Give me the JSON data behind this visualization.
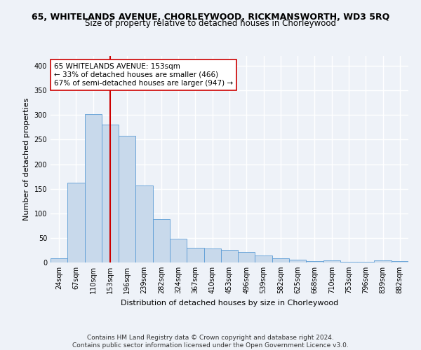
{
  "title1": "65, WHITELANDS AVENUE, CHORLEYWOOD, RICKMANSWORTH, WD3 5RQ",
  "title2": "Size of property relative to detached houses in Chorleywood",
  "xlabel": "Distribution of detached houses by size in Chorleywood",
  "ylabel": "Number of detached properties",
  "categories": [
    "24sqm",
    "67sqm",
    "110sqm",
    "153sqm",
    "196sqm",
    "239sqm",
    "282sqm",
    "324sqm",
    "367sqm",
    "410sqm",
    "453sqm",
    "496sqm",
    "539sqm",
    "582sqm",
    "625sqm",
    "668sqm",
    "710sqm",
    "753sqm",
    "796sqm",
    "839sqm",
    "882sqm"
  ],
  "values": [
    8,
    163,
    302,
    281,
    258,
    157,
    88,
    48,
    30,
    29,
    25,
    22,
    14,
    8,
    6,
    3,
    4,
    2,
    1,
    4,
    3
  ],
  "bar_color": "#c8d9eb",
  "bar_edge_color": "#5b9bd5",
  "vline_x": 3,
  "vline_color": "#cc0000",
  "annotation_text": "65 WHITELANDS AVENUE: 153sqm\n← 33% of detached houses are smaller (466)\n67% of semi-detached houses are larger (947) →",
  "annotation_box_color": "white",
  "annotation_box_edge_color": "#cc0000",
  "ylim": [
    0,
    420
  ],
  "yticks": [
    0,
    50,
    100,
    150,
    200,
    250,
    300,
    350,
    400
  ],
  "footer_text": "Contains HM Land Registry data © Crown copyright and database right 2024.\nContains public sector information licensed under the Open Government Licence v3.0.",
  "background_color": "#eef2f8",
  "grid_color": "white",
  "title1_fontsize": 9,
  "title2_fontsize": 8.5,
  "xlabel_fontsize": 8,
  "ylabel_fontsize": 8,
  "tick_fontsize": 7,
  "annotation_fontsize": 7.5,
  "footer_fontsize": 6.5
}
